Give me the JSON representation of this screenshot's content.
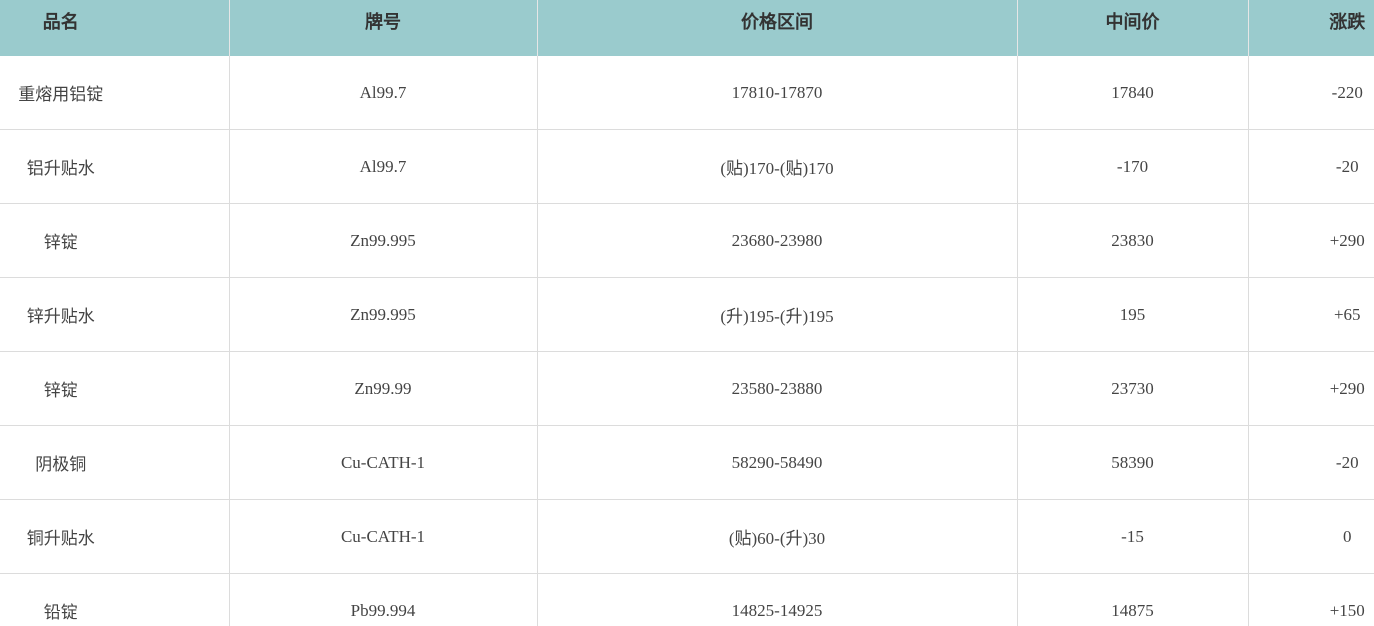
{
  "table": {
    "headers": [
      "品名",
      "牌号",
      "价格区间",
      "中间价",
      "涨跌"
    ],
    "rows": [
      [
        "重熔用铝锭",
        "Al99.7",
        "17810-17870",
        "17840",
        "-220"
      ],
      [
        "铝升贴水",
        "Al99.7",
        "(贴)170-(贴)170",
        "-170",
        "-20"
      ],
      [
        "锌锭",
        "Zn99.995",
        "23680-23980",
        "23830",
        "+290"
      ],
      [
        "锌升贴水",
        "Zn99.995",
        "(升)195-(升)195",
        "195",
        "+65"
      ],
      [
        "锌锭",
        "Zn99.99",
        "23580-23880",
        "23730",
        "+290"
      ],
      [
        "阴极铜",
        "Cu-CATH-1",
        "58290-58490",
        "58390",
        "-20"
      ],
      [
        "铜升贴水",
        "Cu-CATH-1",
        "(贴)60-(升)30",
        "-15",
        "0"
      ],
      [
        "铅锭",
        "Pb99.994",
        "14825-14925",
        "14875",
        "+150"
      ]
    ]
  },
  "colors": {
    "header_bg": "#9acbcd",
    "text": "#444444",
    "border": "#dcdcdc"
  }
}
